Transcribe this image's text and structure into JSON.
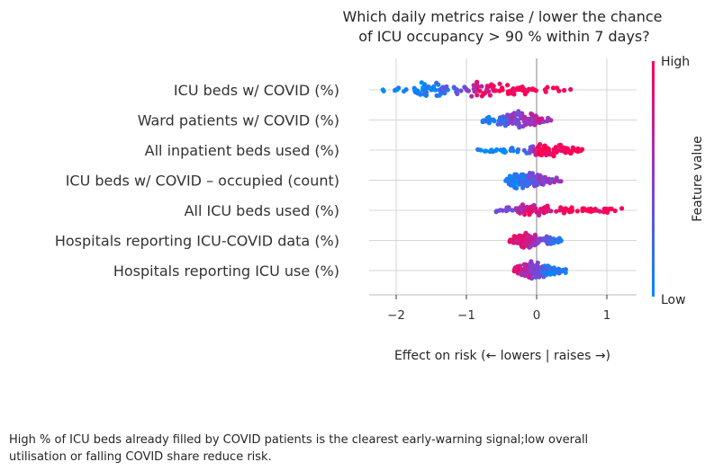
{
  "chart_data": {
    "type": "scatter",
    "subtype": "beeswarm",
    "title_lines": [
      "Which daily metrics raise / lower the chance",
      "of ICU occupancy > 90 % within 7 days?"
    ],
    "xlabel": "Effect on risk (← lowers | raises →)",
    "xlim": [
      -2.35,
      1.4
    ],
    "xticks": [
      {
        "value": -2,
        "label": "−2"
      },
      {
        "value": -1,
        "label": "−1"
      },
      {
        "value": 0,
        "label": "0"
      },
      {
        "value": 1,
        "label": "1"
      }
    ],
    "grid": true,
    "colorbar": {
      "label": "Feature value",
      "high": "High",
      "low": "Low",
      "high_color": "#ff0052",
      "low_color": "#008bfb"
    },
    "features": [
      {
        "name": "ICU beds w/ COVID (%)",
        "density": [
          [
            -2.22,
            0.06,
            0.0
          ],
          [
            -1.85,
            0.25,
            0.05
          ],
          [
            -1.5,
            0.95,
            0.1
          ],
          [
            -1.25,
            0.45,
            0.2
          ],
          [
            -1.0,
            0.35,
            0.35
          ],
          [
            -0.8,
            1.0,
            0.85
          ],
          [
            -0.55,
            0.65,
            0.95
          ],
          [
            -0.3,
            0.45,
            1.0
          ],
          [
            0.0,
            0.3,
            1.0
          ],
          [
            0.3,
            0.15,
            1.0
          ],
          [
            0.55,
            0.05,
            1.0
          ]
        ]
      },
      {
        "name": "Ward patients w/ COVID (%)",
        "density": [
          [
            -0.82,
            0.15,
            0.05
          ],
          [
            -0.5,
            0.5,
            0.2
          ],
          [
            -0.35,
            1.0,
            0.5
          ],
          [
            -0.2,
            0.9,
            0.55
          ],
          [
            0.0,
            0.35,
            0.7
          ],
          [
            0.22,
            0.1,
            0.6
          ]
        ]
      },
      {
        "name": "All inpatient beds used (%)",
        "density": [
          [
            -0.85,
            0.1,
            0.0
          ],
          [
            -0.4,
            0.25,
            0.0
          ],
          [
            -0.1,
            0.3,
            0.2
          ],
          [
            0.02,
            0.9,
            1.0
          ],
          [
            0.2,
            0.7,
            1.0
          ],
          [
            0.45,
            0.4,
            1.0
          ],
          [
            0.65,
            0.1,
            1.0
          ]
        ]
      },
      {
        "name": "ICU beds w/ COVID – occupied (count)",
        "density": [
          [
            -0.45,
            0.15,
            0.0
          ],
          [
            -0.25,
            1.0,
            0.15
          ],
          [
            0.0,
            0.6,
            0.45
          ],
          [
            0.15,
            0.35,
            0.5
          ],
          [
            0.35,
            0.05,
            0.5
          ]
        ]
      },
      {
        "name": "All ICU beds used (%)",
        "density": [
          [
            -0.62,
            0.1,
            0.3
          ],
          [
            -0.3,
            0.3,
            0.55
          ],
          [
            -0.15,
            0.75,
            0.9
          ],
          [
            0.05,
            0.55,
            0.8
          ],
          [
            0.3,
            0.3,
            1.0
          ],
          [
            0.7,
            0.2,
            1.0
          ],
          [
            1.22,
            0.1,
            1.0
          ]
        ]
      },
      {
        "name": "Hospitals reporting ICU-COVID data (%)",
        "density": [
          [
            -0.4,
            0.1,
            0.95
          ],
          [
            -0.15,
            0.9,
            0.8
          ],
          [
            0.05,
            0.45,
            0.45
          ],
          [
            0.35,
            0.15,
            0.1
          ]
        ]
      },
      {
        "name": "Hospitals reporting ICU use (%)",
        "density": [
          [
            -0.32,
            0.4,
            0.95
          ],
          [
            -0.05,
            0.95,
            0.5
          ],
          [
            0.15,
            0.45,
            0.15
          ],
          [
            0.42,
            0.15,
            0.0
          ]
        ]
      }
    ]
  },
  "caption": "High % of ICU beds already filled by COVID patients is the clearest early-warning signal;low overall utilisation or falling COVID share reduce risk."
}
